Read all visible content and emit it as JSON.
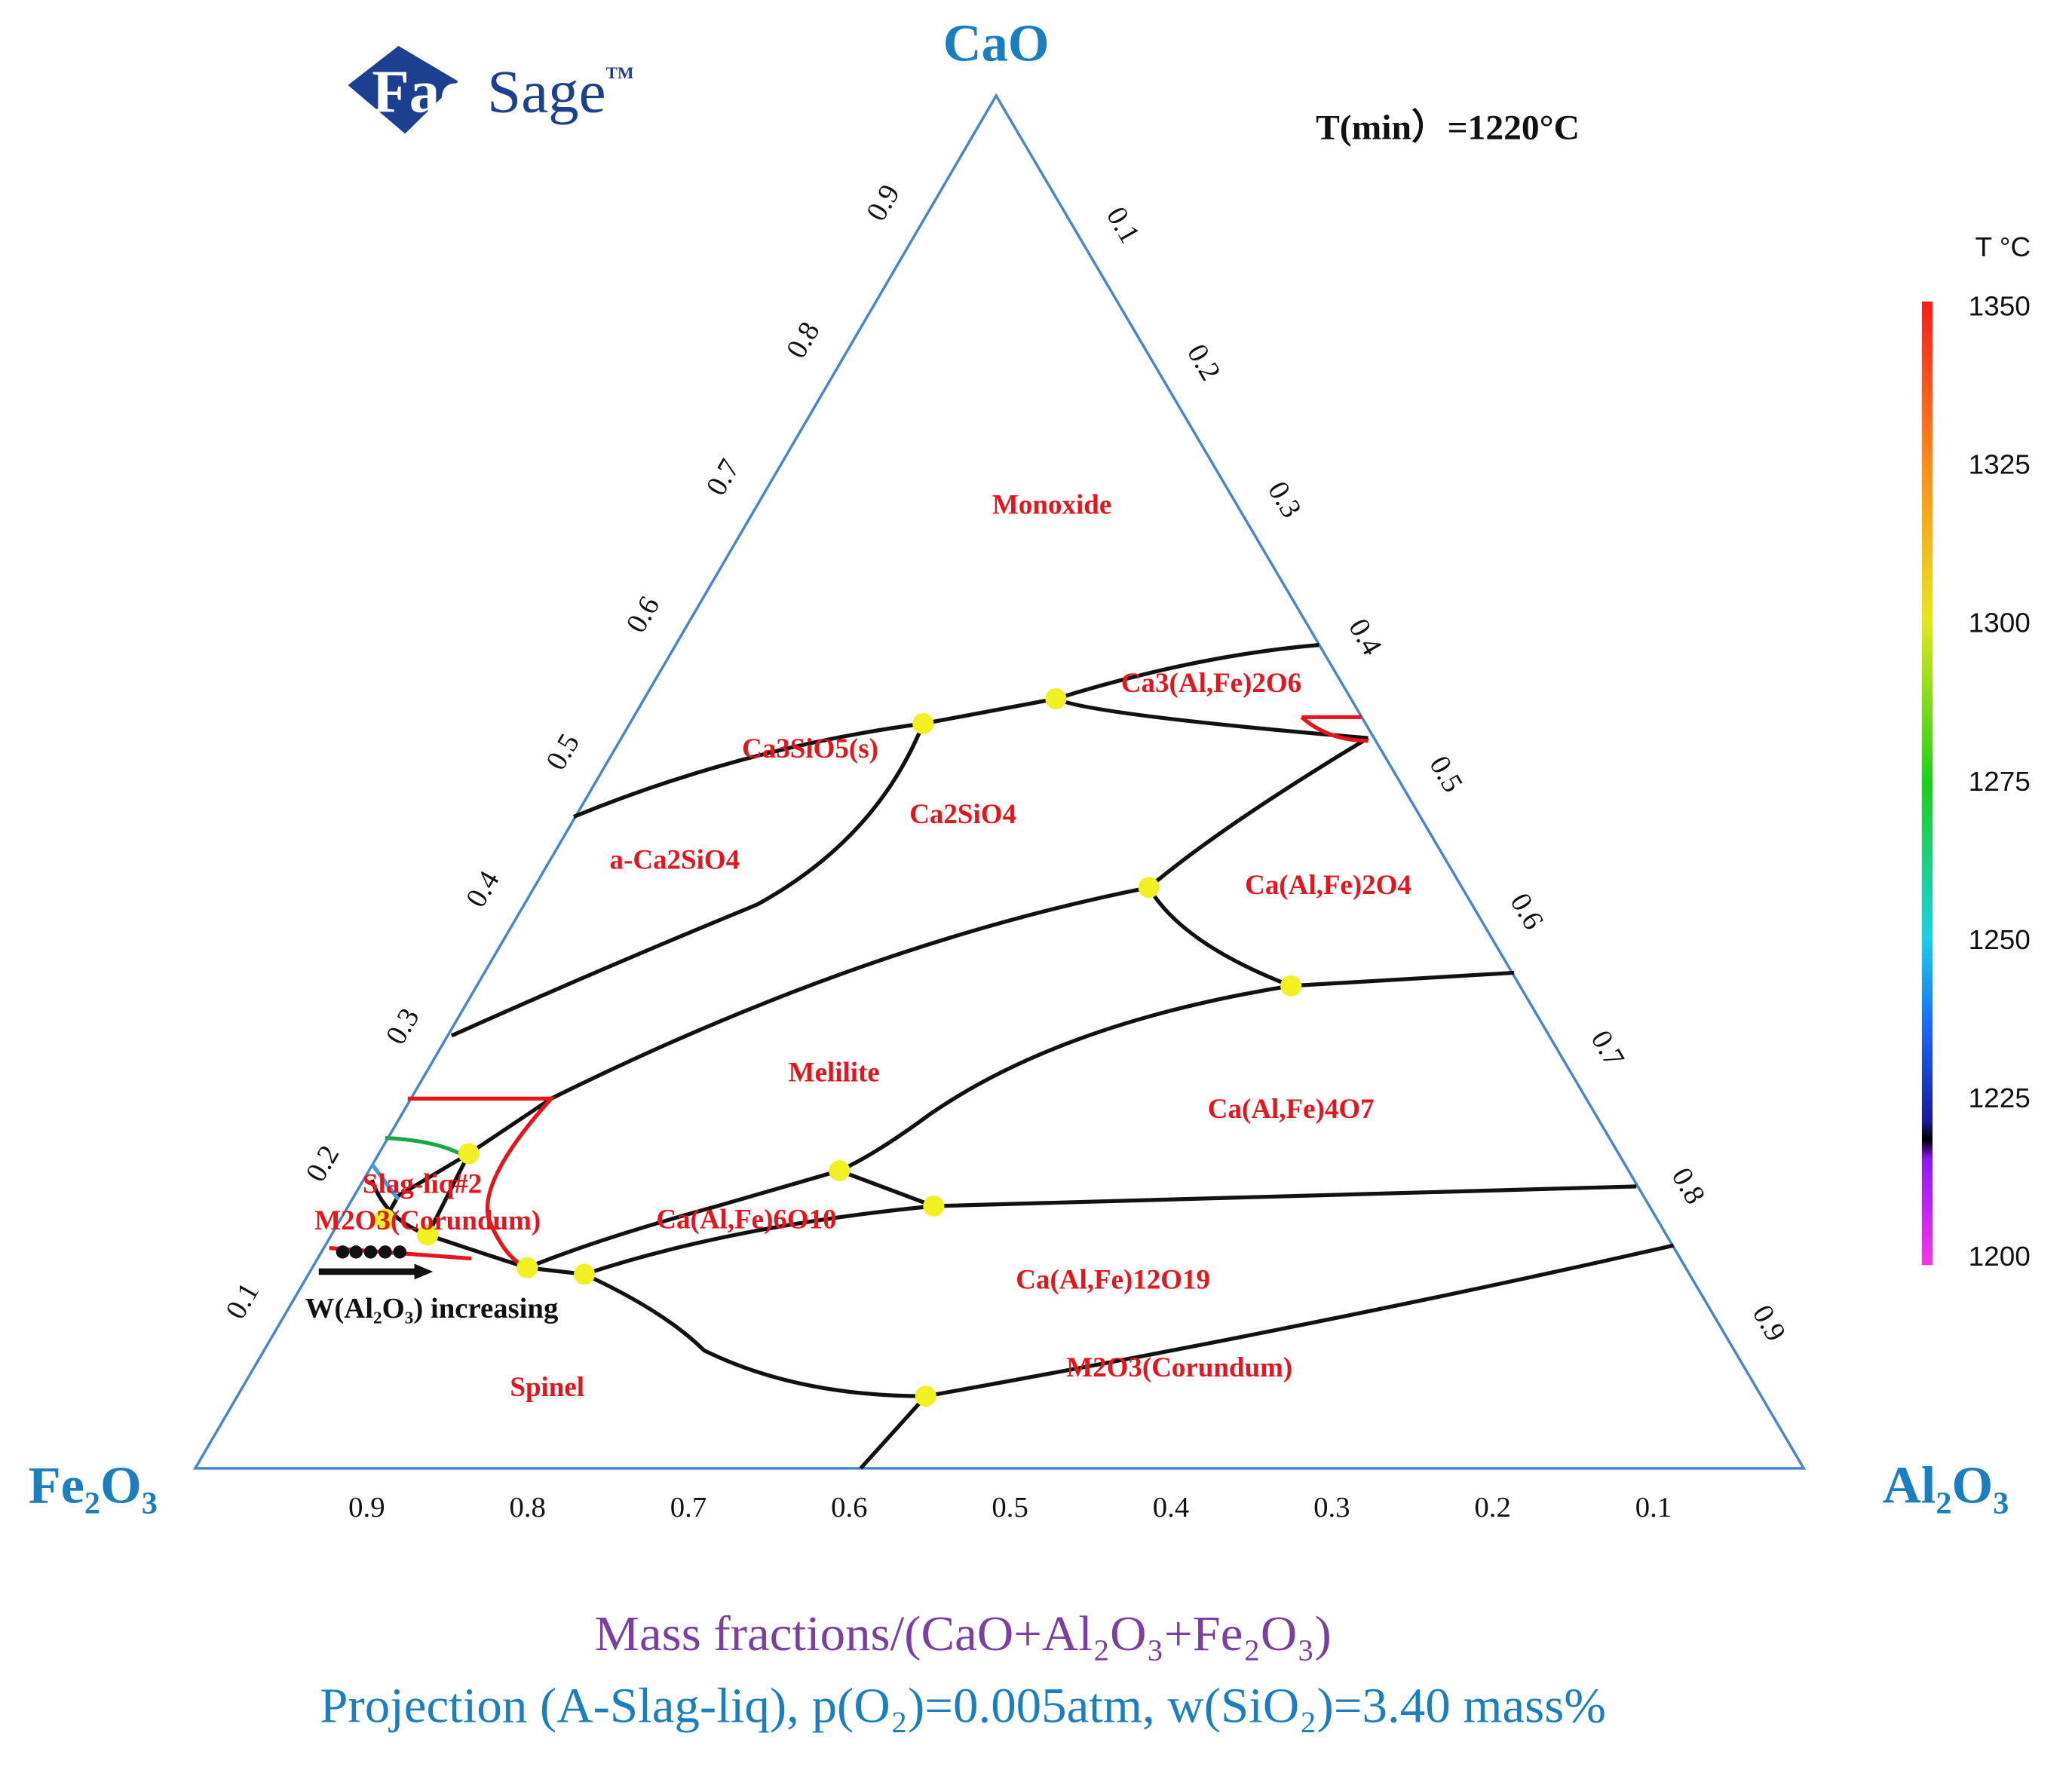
{
  "logo": {
    "parts": [
      "Fact",
      "Sage"
    ],
    "mark": "TM"
  },
  "title": "T(min）=1220°C",
  "vertices": {
    "top": "CaO",
    "left": "Fe₂O₃",
    "right": "Al₂O₃"
  },
  "axes": {
    "left_ticks": [
      "0.1",
      "0.2",
      "0.3",
      "0.4",
      "0.5",
      "0.6",
      "0.7",
      "0.8",
      "0.9"
    ],
    "right_ticks": [
      "0.1",
      "0.2",
      "0.3",
      "0.4",
      "0.5",
      "0.6",
      "0.7",
      "0.8",
      "0.9"
    ],
    "bottom_ticks": [
      "0.9",
      "0.8",
      "0.7",
      "0.6",
      "0.5",
      "0.4",
      "0.3",
      "0.2",
      "0.1"
    ]
  },
  "colorbar": {
    "title": "T °C",
    "ticks": [
      1350,
      1325,
      1300,
      1275,
      1250,
      1225,
      1200
    ]
  },
  "phases": [
    "Monoxide",
    "Ca3(Al,Fe)2O6",
    "Ca3SiO5(s)",
    "Ca2SiO4",
    "a-Ca2SiO4",
    "Ca(Al,Fe)2O4",
    "Melilite",
    "Ca(Al,Fe)4O7",
    "Slag-liq#2",
    "M2O3(Corundum)",
    "Ca(Al,Fe)6O10",
    "Ca(Al,Fe)12O19",
    "M2O3(Corundum)",
    "Spinel"
  ],
  "annotation": "W(Al₂O₃) increasing",
  "footer": {
    "line1": "Mass fractions/(CaO+Al₂O₃+Fe₂O₃)",
    "line2": "Projection (A-Slag-liq), p(O₂)=0.005atm, w(SiO₂)=3.40 mass%"
  }
}
